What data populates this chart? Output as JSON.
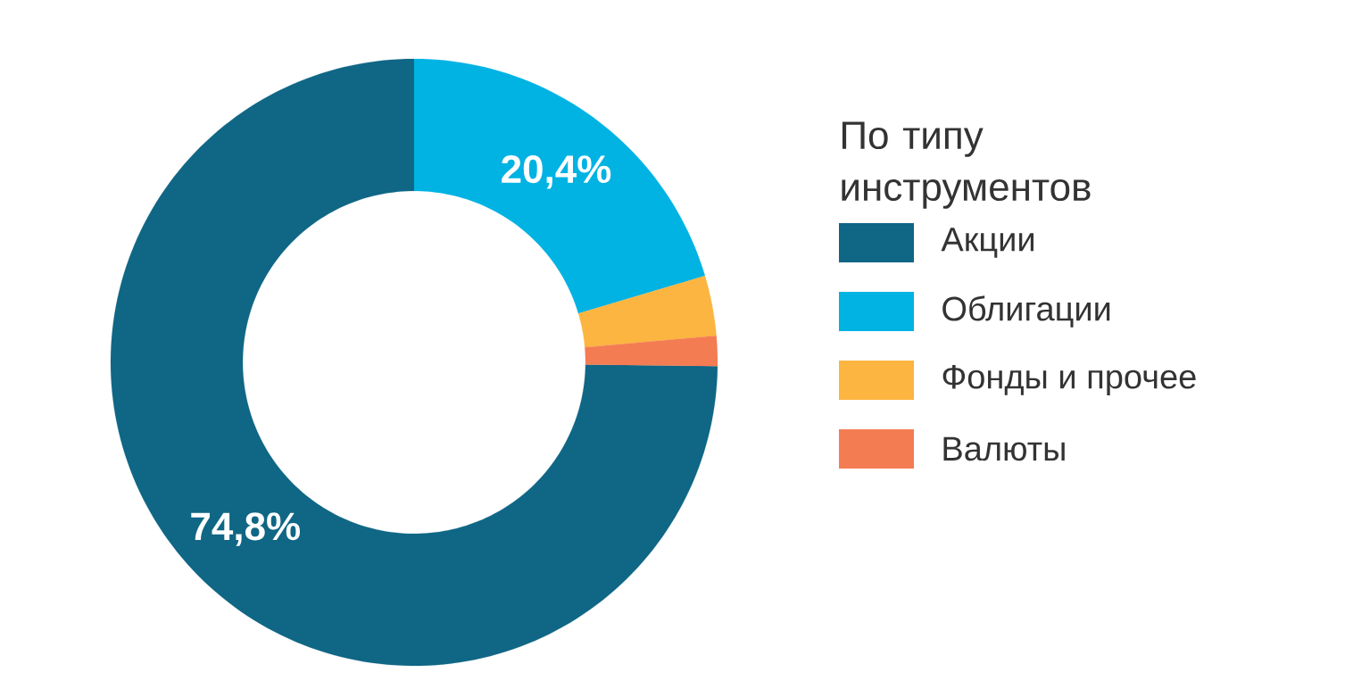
{
  "chart_data": {
    "type": "donut",
    "legend_title": "По типу инструментов",
    "legend": "right",
    "categories": [
      "Акции",
      "Облигации",
      "Фонды и прочее",
      "Валюты"
    ],
    "values": [
      74.8,
      20.4,
      3.2,
      1.6
    ],
    "colors": [
      "#0f6685",
      "#00b3e3",
      "#fbb540",
      "#f47c52"
    ],
    "value_labels": [
      "74,8%",
      "20,4%",
      null,
      null
    ]
  }
}
